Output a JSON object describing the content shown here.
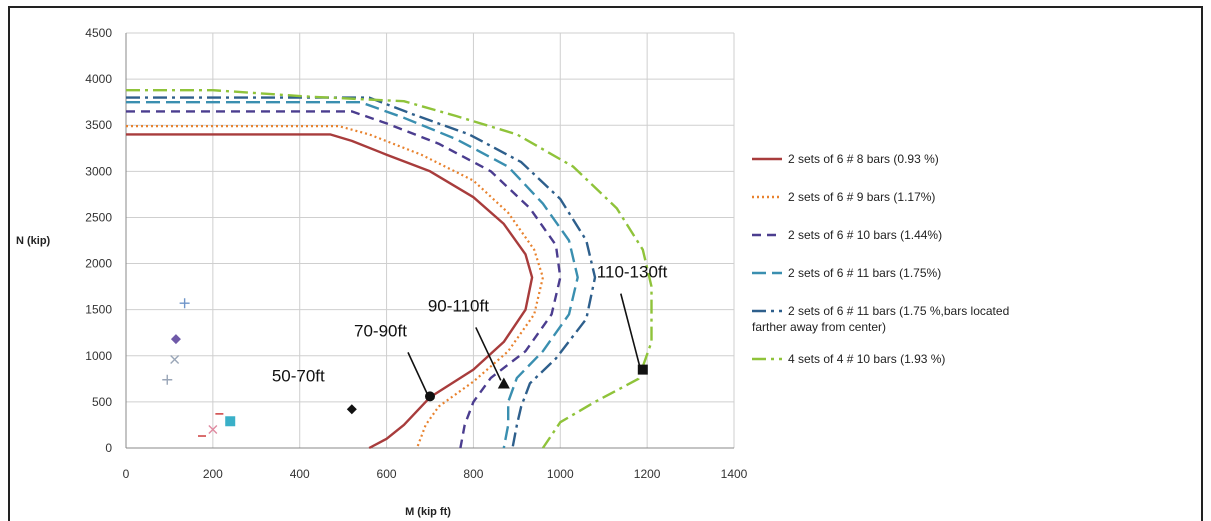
{
  "chart_data": {
    "type": "line",
    "xlabel": "M (kip ft)",
    "ylabel": "N (kip)",
    "xlim": [
      0,
      1400
    ],
    "ylim": [
      0,
      4500
    ],
    "xticks": [
      0,
      200,
      400,
      600,
      800,
      1000,
      1200,
      1400
    ],
    "yticks": [
      0,
      500,
      1000,
      1500,
      2000,
      2500,
      3000,
      3500,
      4000,
      4500
    ],
    "grid": true,
    "legend_position": "right",
    "series": [
      {
        "name": "2 sets of 6 # 8 bars (0.93 %)",
        "color": "#a83c3c",
        "dash": "solid",
        "points": [
          [
            0,
            3400
          ],
          [
            470,
            3400
          ],
          [
            520,
            3330
          ],
          [
            600,
            3180
          ],
          [
            700,
            3000
          ],
          [
            800,
            2720
          ],
          [
            870,
            2430
          ],
          [
            920,
            2100
          ],
          [
            935,
            1850
          ],
          [
            920,
            1500
          ],
          [
            870,
            1150
          ],
          [
            800,
            850
          ],
          [
            700,
            550
          ],
          [
            640,
            250
          ],
          [
            600,
            100
          ],
          [
            560,
            0
          ]
        ]
      },
      {
        "name": "2 sets of 6 # 9 bars (1.17%)",
        "color": "#e8822e",
        "dash": "dotted",
        "points": [
          [
            0,
            3490
          ],
          [
            490,
            3490
          ],
          [
            560,
            3400
          ],
          [
            680,
            3180
          ],
          [
            800,
            2900
          ],
          [
            880,
            2550
          ],
          [
            940,
            2150
          ],
          [
            960,
            1850
          ],
          [
            940,
            1450
          ],
          [
            880,
            1050
          ],
          [
            800,
            720
          ],
          [
            720,
            450
          ],
          [
            690,
            250
          ],
          [
            670,
            0
          ]
        ]
      },
      {
        "name": "2 sets of 6 # 10 bars (1.44%)",
        "color": "#4b3d8f",
        "dash": "dashed",
        "points": [
          [
            0,
            3650
          ],
          [
            520,
            3650
          ],
          [
            600,
            3520
          ],
          [
            720,
            3300
          ],
          [
            840,
            3000
          ],
          [
            930,
            2600
          ],
          [
            990,
            2200
          ],
          [
            1000,
            1850
          ],
          [
            980,
            1450
          ],
          [
            920,
            1050
          ],
          [
            840,
            760
          ],
          [
            800,
            500
          ],
          [
            780,
            250
          ],
          [
            770,
            0
          ]
        ]
      },
      {
        "name": "2 sets of 6 # 11 bars (1.75%)",
        "color": "#3a8fb0",
        "dash": "longdash",
        "points": [
          [
            0,
            3750
          ],
          [
            540,
            3750
          ],
          [
            640,
            3580
          ],
          [
            760,
            3350
          ],
          [
            880,
            3050
          ],
          [
            960,
            2650
          ],
          [
            1020,
            2250
          ],
          [
            1040,
            1850
          ],
          [
            1020,
            1450
          ],
          [
            960,
            1050
          ],
          [
            900,
            760
          ],
          [
            880,
            500
          ],
          [
            880,
            250
          ],
          [
            870,
            0
          ]
        ]
      },
      {
        "name": "2 sets of 6 # 11 bars (1.75 %,bars located farther away from center)",
        "color": "#2e5f8c",
        "dash": "dashdot",
        "points": [
          [
            0,
            3800
          ],
          [
            560,
            3800
          ],
          [
            660,
            3620
          ],
          [
            790,
            3400
          ],
          [
            910,
            3100
          ],
          [
            1000,
            2700
          ],
          [
            1060,
            2250
          ],
          [
            1080,
            1850
          ],
          [
            1060,
            1400
          ],
          [
            990,
            970
          ],
          [
            930,
            700
          ],
          [
            910,
            450
          ],
          [
            900,
            250
          ],
          [
            890,
            0
          ]
        ]
      },
      {
        "name": "4 sets of  4 # 10 bars (1.93 %)",
        "color": "#8fc33a",
        "dash": "dashdot",
        "points": [
          [
            0,
            3880
          ],
          [
            200,
            3880
          ],
          [
            420,
            3810
          ],
          [
            640,
            3760
          ],
          [
            760,
            3600
          ],
          [
            900,
            3400
          ],
          [
            1030,
            3050
          ],
          [
            1130,
            2600
          ],
          [
            1190,
            2150
          ],
          [
            1210,
            1750
          ],
          [
            1210,
            1150
          ],
          [
            1180,
            750
          ],
          [
            1080,
            500
          ],
          [
            1000,
            280
          ],
          [
            960,
            0
          ]
        ]
      }
    ],
    "markers": [
      {
        "label": "50-70ft",
        "x": 520,
        "y": 420,
        "shape": "diamond",
        "color": "#111111"
      },
      {
        "label": "70-90ft",
        "x": 700,
        "y": 560,
        "shape": "circle",
        "color": "#111111"
      },
      {
        "label": "90-110ft",
        "x": 870,
        "y": 700,
        "shape": "triangle",
        "color": "#111111"
      },
      {
        "label": "110-130ft",
        "x": 1190,
        "y": 850,
        "shape": "square",
        "color": "#111111"
      }
    ],
    "small_points": [
      {
        "shape": "plus",
        "x": 135,
        "y": 1570,
        "color": "#6f95c9"
      },
      {
        "shape": "diamond",
        "x": 115,
        "y": 1180,
        "color": "#6f59a8"
      },
      {
        "shape": "x",
        "x": 112,
        "y": 960,
        "color": "#9aa6b8"
      },
      {
        "shape": "plus",
        "x": 95,
        "y": 740,
        "color": "#9aa6b8"
      },
      {
        "shape": "square",
        "x": 240,
        "y": 290,
        "color": "#3ab0c8"
      },
      {
        "shape": "x",
        "x": 200,
        "y": 200,
        "color": "#e08aa0"
      },
      {
        "shape": "dash",
        "x": 215,
        "y": 370,
        "color": "#d04a4a"
      },
      {
        "shape": "dash",
        "x": 175,
        "y": 130,
        "color": "#d04a4a"
      }
    ]
  }
}
